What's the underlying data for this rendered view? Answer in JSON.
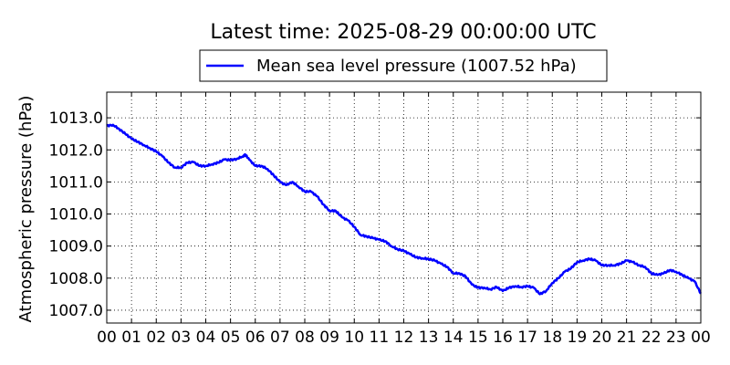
{
  "chart_data": {
    "type": "line",
    "title": "Latest time: 2025-08-29 00:00:00 UTC",
    "xlabel": "",
    "ylabel": "Atmospheric pressure (hPa)",
    "xlim": [
      0,
      24
    ],
    "ylim": [
      1006.6,
      1013.8
    ],
    "x_tick_values": [
      0,
      1,
      2,
      3,
      4,
      5,
      6,
      7,
      8,
      9,
      10,
      11,
      12,
      13,
      14,
      15,
      16,
      17,
      18,
      19,
      20,
      21,
      22,
      23,
      24
    ],
    "x_tick_labels": [
      "00",
      "01",
      "02",
      "03",
      "04",
      "05",
      "06",
      "07",
      "08",
      "09",
      "10",
      "11",
      "12",
      "13",
      "14",
      "15",
      "16",
      "17",
      "18",
      "19",
      "20",
      "21",
      "22",
      "23",
      "00"
    ],
    "y_tick_values": [
      1007.0,
      1008.0,
      1009.0,
      1010.0,
      1011.0,
      1012.0,
      1013.0
    ],
    "y_tick_labels": [
      "1007.0",
      "1008.0",
      "1009.0",
      "1010.0",
      "1011.0",
      "1012.0",
      "1013.0"
    ],
    "grid": true,
    "legend_position": "top-center",
    "color": "#0000ff",
    "series": [
      {
        "name": "Mean sea level pressure (1007.52 hPa)",
        "x": [
          0,
          0.25,
          0.5,
          0.75,
          1,
          1.25,
          1.5,
          1.75,
          2,
          2.25,
          2.5,
          2.75,
          3,
          3.25,
          3.5,
          3.75,
          4,
          4.25,
          4.5,
          4.75,
          5,
          5.25,
          5.5,
          5.6,
          5.75,
          6,
          6.25,
          6.5,
          6.75,
          7,
          7.25,
          7.5,
          7.75,
          8,
          8.25,
          8.5,
          8.75,
          9,
          9.25,
          9.5,
          9.75,
          10,
          10.25,
          10.5,
          10.75,
          11,
          11.25,
          11.5,
          11.75,
          12,
          12.25,
          12.5,
          12.75,
          13,
          13.25,
          13.5,
          13.75,
          14,
          14.25,
          14.5,
          14.75,
          15,
          15.25,
          15.5,
          15.75,
          16,
          16.25,
          16.5,
          16.75,
          17,
          17.25,
          17.5,
          17.75,
          18,
          18.25,
          18.5,
          18.75,
          19,
          19.25,
          19.5,
          19.75,
          20,
          20.25,
          20.5,
          20.75,
          21,
          21.25,
          21.5,
          21.75,
          22,
          22.25,
          22.5,
          22.75,
          23,
          23.25,
          23.5,
          23.75,
          24
        ],
        "y": [
          1012.75,
          1012.78,
          1012.65,
          1012.5,
          1012.35,
          1012.25,
          1012.15,
          1012.05,
          1011.95,
          1011.8,
          1011.6,
          1011.45,
          1011.45,
          1011.6,
          1011.62,
          1011.5,
          1011.5,
          1011.55,
          1011.6,
          1011.7,
          1011.68,
          1011.72,
          1011.8,
          1011.85,
          1011.7,
          1011.5,
          1011.5,
          1011.4,
          1011.2,
          1011.0,
          1010.9,
          1011.0,
          1010.85,
          1010.7,
          1010.7,
          1010.55,
          1010.3,
          1010.1,
          1010.1,
          1009.9,
          1009.8,
          1009.6,
          1009.35,
          1009.3,
          1009.25,
          1009.2,
          1009.15,
          1009.0,
          1008.9,
          1008.85,
          1008.75,
          1008.65,
          1008.62,
          1008.6,
          1008.55,
          1008.45,
          1008.35,
          1008.15,
          1008.15,
          1008.05,
          1007.8,
          1007.7,
          1007.7,
          1007.65,
          1007.72,
          1007.6,
          1007.7,
          1007.75,
          1007.72,
          1007.75,
          1007.7,
          1007.5,
          1007.6,
          1007.85,
          1008.0,
          1008.2,
          1008.3,
          1008.5,
          1008.55,
          1008.6,
          1008.55,
          1008.4,
          1008.4,
          1008.4,
          1008.45,
          1008.55,
          1008.5,
          1008.4,
          1008.35,
          1008.15,
          1008.1,
          1008.15,
          1008.25,
          1008.2,
          1008.1,
          1008.0,
          1007.9,
          1007.52
        ]
      }
    ]
  }
}
